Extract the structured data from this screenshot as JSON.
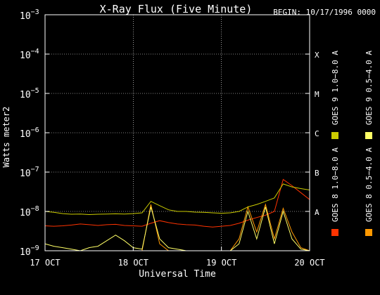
{
  "chart_data": {
    "type": "line",
    "title": "X-Ray Flux (Five Minute)",
    "begin_label": "BEGIN: 10/17/1996 0000",
    "xlabel": "Universal Time",
    "ylabel": "Watts meter2",
    "y_scale": "log",
    "ylim": [
      1e-09,
      0.001
    ],
    "y_ticks": [
      {
        "exp": -9,
        "base": "10",
        "sup": "−9"
      },
      {
        "exp": -8,
        "base": "10",
        "sup": "−8"
      },
      {
        "exp": -7,
        "base": "10",
        "sup": "−7"
      },
      {
        "exp": -6,
        "base": "10",
        "sup": "−6"
      },
      {
        "exp": -5,
        "base": "10",
        "sup": "−5"
      },
      {
        "exp": -4,
        "base": "10",
        "sup": "−4"
      },
      {
        "exp": -3,
        "base": "10",
        "sup": "−3"
      }
    ],
    "x_ticks": [
      {
        "day": 0,
        "label": "17 OCT"
      },
      {
        "day": 1,
        "label": "18 OCT"
      },
      {
        "day": 2,
        "label": "19 OCT"
      },
      {
        "day": 3,
        "label": "20 OCT"
      }
    ],
    "flare_classes": [
      {
        "label": "A",
        "exp": -8
      },
      {
        "label": "B",
        "exp": -7
      },
      {
        "label": "C",
        "exp": -6
      },
      {
        "label": "M",
        "exp": -5
      },
      {
        "label": "X",
        "exp": -4
      }
    ],
    "grid": "dotted",
    "legend_position": "right, vertical",
    "series": [
      {
        "name": "GOES 8 1.0−8.0 A",
        "color": "#ff3300",
        "x": [
          0.0,
          0.1,
          0.2,
          0.3,
          0.4,
          0.5,
          0.6,
          0.7,
          0.8,
          0.9,
          1.0,
          1.1,
          1.2,
          1.3,
          1.4,
          1.5,
          1.6,
          1.7,
          1.8,
          1.9,
          2.0,
          2.1,
          2.2,
          2.3,
          2.4,
          2.5,
          2.6,
          2.7,
          2.8,
          2.9,
          3.0
        ],
        "y": [
          4.3e-09,
          4.2e-09,
          4.3e-09,
          4.5e-09,
          4.8e-09,
          4.6e-09,
          4.4e-09,
          4.6e-09,
          4.7e-09,
          4.4e-09,
          4.3e-09,
          4.2e-09,
          5e-09,
          5.8e-09,
          5.2e-09,
          4.8e-09,
          4.6e-09,
          4.5e-09,
          4.2e-09,
          4e-09,
          4.2e-09,
          4.4e-09,
          5e-09,
          6e-09,
          7e-09,
          8e-09,
          1e-08,
          6.5e-08,
          4.5e-08,
          3e-08,
          2e-08
        ]
      },
      {
        "name": "GOES 8 0.5−4.0 A",
        "color": "#ff9900",
        "x": [
          0.0,
          0.1,
          0.2,
          0.3,
          0.4,
          0.5,
          0.6,
          0.7,
          0.8,
          0.9,
          1.0,
          1.1,
          1.2,
          1.3,
          1.4,
          1.5,
          1.6,
          1.7,
          1.8,
          1.9,
          2.0,
          2.1,
          2.2,
          2.3,
          2.4,
          2.5,
          2.6,
          2.7,
          2.8,
          2.9,
          3.0
        ],
        "y": [
          1e-09,
          1e-09,
          1e-09,
          1e-09,
          1e-09,
          1e-09,
          1e-09,
          1e-09,
          1e-09,
          1e-09,
          1e-09,
          1e-09,
          1.5e-08,
          1.5e-09,
          1e-09,
          1e-09,
          1e-09,
          1e-09,
          1e-09,
          1e-09,
          1e-09,
          1e-09,
          2e-09,
          1.3e-08,
          3e-09,
          1.5e-08,
          2e-09,
          1.2e-08,
          3e-09,
          1.2e-09,
          1e-09
        ]
      },
      {
        "name": "GOES 9 1.0−8.0 A",
        "color": "#cccc00",
        "x": [
          0.0,
          0.1,
          0.2,
          0.3,
          0.4,
          0.5,
          0.6,
          0.7,
          0.8,
          0.9,
          1.0,
          1.1,
          1.2,
          1.3,
          1.4,
          1.5,
          1.6,
          1.7,
          1.8,
          1.9,
          2.0,
          2.1,
          2.2,
          2.3,
          2.4,
          2.5,
          2.6,
          2.7,
          2.8,
          2.9,
          3.0
        ],
        "y": [
          1e-08,
          9.5e-09,
          8.8e-09,
          8.5e-09,
          8.6e-09,
          8.3e-09,
          8.5e-09,
          8.6e-09,
          8.7e-09,
          8.6e-09,
          8.8e-09,
          9.2e-09,
          1.8e-08,
          1.4e-08,
          1.1e-08,
          1e-08,
          1e-08,
          9.6e-09,
          9.5e-09,
          9.2e-09,
          9e-09,
          9.2e-09,
          1e-08,
          1.3e-08,
          1.5e-08,
          1.8e-08,
          2.2e-08,
          5e-08,
          4.2e-08,
          3.8e-08,
          3.5e-08
        ]
      },
      {
        "name": "GOES 9 0.5−4.0 A",
        "color": "#ffff66",
        "x": [
          0.0,
          0.1,
          0.2,
          0.3,
          0.4,
          0.5,
          0.6,
          0.7,
          0.8,
          0.9,
          1.0,
          1.1,
          1.2,
          1.3,
          1.4,
          1.5,
          1.6,
          1.7,
          1.8,
          1.9,
          2.0,
          2.1,
          2.2,
          2.3,
          2.4,
          2.5,
          2.6,
          2.7,
          2.8,
          2.9,
          3.0
        ],
        "y": [
          1.5e-09,
          1.3e-09,
          1.2e-09,
          1.1e-09,
          1e-09,
          1.2e-09,
          1.3e-09,
          1.8e-09,
          2.5e-09,
          1.8e-09,
          1.2e-09,
          1.1e-09,
          1.3e-08,
          2e-09,
          1.2e-09,
          1.1e-09,
          1e-09,
          1e-09,
          1e-09,
          1e-09,
          1e-09,
          1e-09,
          1.5e-09,
          1e-08,
          2e-09,
          1.3e-08,
          1.5e-09,
          1e-08,
          2e-09,
          1.1e-09,
          1e-09
        ]
      }
    ]
  }
}
